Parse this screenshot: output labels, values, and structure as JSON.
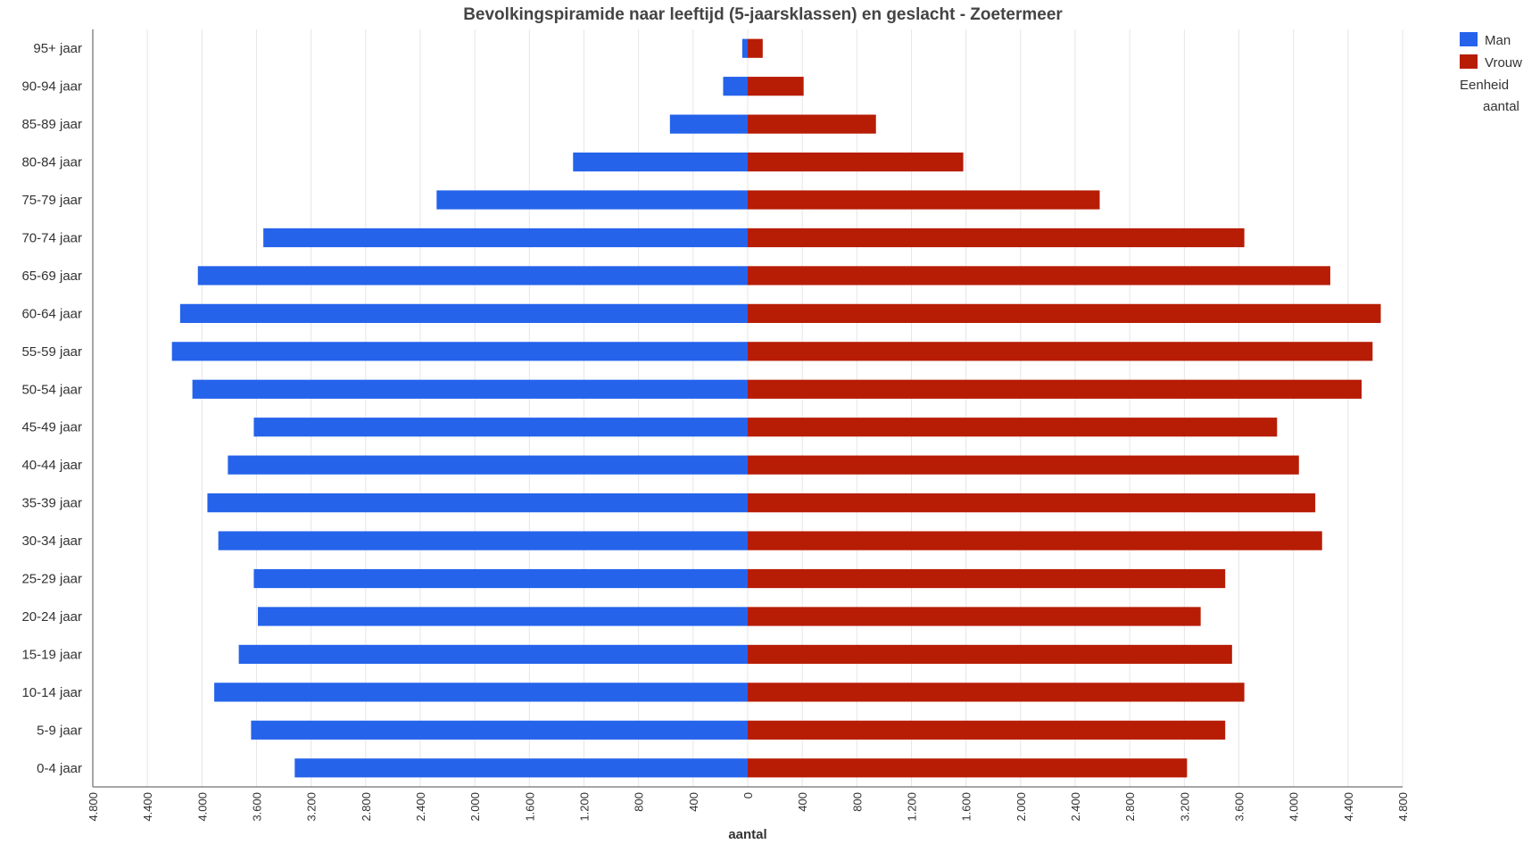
{
  "chart_data": {
    "type": "bar",
    "orientation": "horizontal-pyramid",
    "title": "Bevolkingspiramide naar leeftijd (5-jaarsklassen) en geslacht - Zoetermeer",
    "xlabel": "aantal",
    "ylabel": "",
    "categories": [
      "95+ jaar",
      "90-94 jaar",
      "85-89 jaar",
      "80-84 jaar",
      "75-79 jaar",
      "70-74 jaar",
      "65-69 jaar",
      "60-64 jaar",
      "55-59 jaar",
      "50-54 jaar",
      "45-49 jaar",
      "40-44 jaar",
      "35-39 jaar",
      "30-34 jaar",
      "25-29 jaar",
      "20-24 jaar",
      "15-19 jaar",
      "10-14 jaar",
      "5-9 jaar",
      "0-4 jaar"
    ],
    "series": [
      {
        "name": "Man",
        "color": "#2563eb",
        "values": [
          40,
          180,
          570,
          1280,
          2280,
          3550,
          4030,
          4160,
          4220,
          4070,
          3620,
          3810,
          3960,
          3880,
          3620,
          3590,
          3730,
          3910,
          3640,
          3320
        ]
      },
      {
        "name": "Vrouw",
        "color": "#b71c04",
        "values": [
          110,
          410,
          940,
          1580,
          2580,
          3640,
          4270,
          4640,
          4580,
          4500,
          3880,
          4040,
          4160,
          4210,
          3500,
          3320,
          3550,
          3640,
          3500,
          3220
        ]
      }
    ],
    "xlim": [
      -4800,
      4800
    ],
    "xticks": [
      -4800,
      -4400,
      -4000,
      -3600,
      -3200,
      -2800,
      -2400,
      -2000,
      -1600,
      -1200,
      -800,
      -400,
      0,
      400,
      800,
      1200,
      1600,
      2000,
      2400,
      2800,
      3200,
      3600,
      4000,
      4400,
      4800
    ],
    "xtick_labels": [
      "4.800",
      "4.400",
      "4.000",
      "3.600",
      "3.200",
      "2.800",
      "2.400",
      "2.000",
      "1.600",
      "1.200",
      "800",
      "400",
      "0",
      "400",
      "800",
      "1.200",
      "1.600",
      "2.000",
      "2.400",
      "2.800",
      "3.200",
      "3.600",
      "4.000",
      "4.400",
      "4.800"
    ],
    "grid": true,
    "legend_placement": "top-right",
    "legend": {
      "items": [
        "Man",
        "Vrouw"
      ],
      "unit_label": "Eenheid",
      "unit_value": "aantal"
    }
  }
}
